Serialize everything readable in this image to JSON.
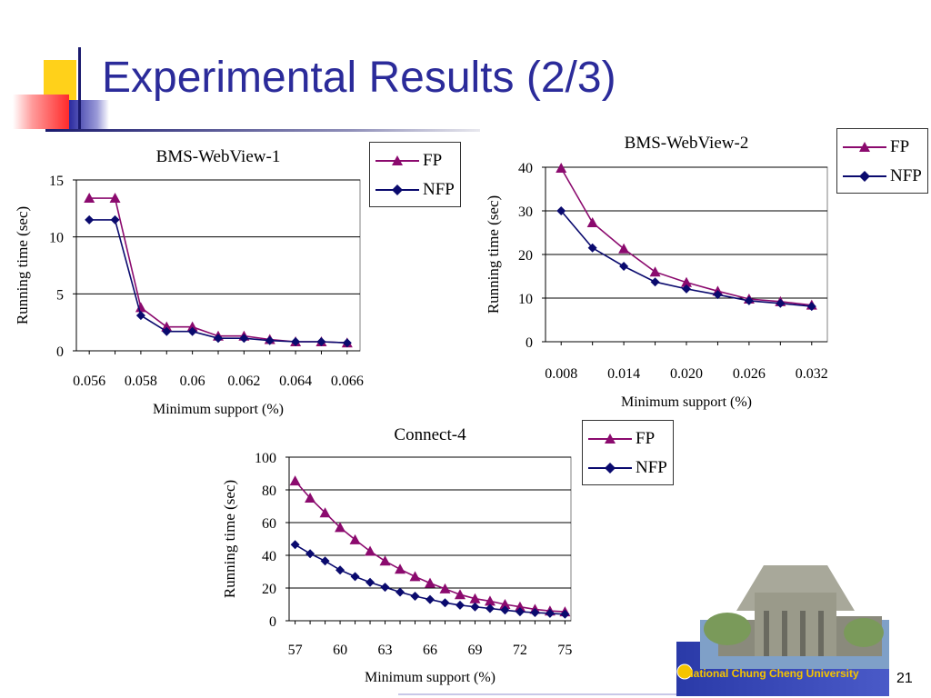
{
  "title": "Experimental Results (2/3)",
  "page_number": "21",
  "footer": {
    "university": "National Chung Cheng University"
  },
  "colors": {
    "title": "#2b2b9a",
    "fp": "#8b0a6e",
    "nfp": "#0a0a6e"
  },
  "chart_data": [
    {
      "type": "line",
      "title": "BMS-WebView-1",
      "xlabel": "Minimum support (%)",
      "ylabel": "Running time (sec)",
      "x": [
        0.056,
        0.057,
        0.058,
        0.059,
        0.06,
        0.061,
        0.062,
        0.063,
        0.064,
        0.065,
        0.066
      ],
      "xticks": [
        "0.056",
        "0.058",
        "0.06",
        "0.062",
        "0.064",
        "0.066"
      ],
      "xlim": [
        0.0555,
        0.0665
      ],
      "ylim": [
        0,
        15
      ],
      "yticks": [
        "0",
        "5",
        "10",
        "15"
      ],
      "grid": true,
      "legend_position": "top-right",
      "series": [
        {
          "name": "FP",
          "marker": "triangle",
          "values": [
            13.4,
            13.4,
            3.8,
            2.1,
            2.1,
            1.3,
            1.3,
            1.0,
            0.8,
            0.8,
            0.7
          ]
        },
        {
          "name": "NFP",
          "marker": "diamond",
          "values": [
            11.5,
            11.5,
            3.1,
            1.7,
            1.7,
            1.1,
            1.1,
            0.9,
            0.8,
            0.8,
            0.7
          ]
        }
      ]
    },
    {
      "type": "line",
      "title": "BMS-WebView-2",
      "xlabel": "Minimum support (%)",
      "ylabel": "Running time (sec)",
      "x": [
        0.008,
        0.011,
        0.014,
        0.017,
        0.02,
        0.023,
        0.026,
        0.029,
        0.032
      ],
      "xticks": [
        "0.008",
        "0.014",
        "0.020",
        "0.026",
        "0.032"
      ],
      "xlim": [
        0.0065,
        0.0335
      ],
      "ylim": [
        0,
        40
      ],
      "yticks": [
        "0",
        "10",
        "20",
        "30",
        "40"
      ],
      "grid": true,
      "legend_position": "top-right",
      "series": [
        {
          "name": "FP",
          "marker": "triangle",
          "values": [
            39.8,
            27.3,
            21.3,
            16.0,
            13.6,
            11.6,
            9.8,
            9.2,
            8.4
          ]
        },
        {
          "name": "NFP",
          "marker": "diamond",
          "values": [
            30.0,
            21.5,
            17.3,
            13.7,
            12.1,
            10.8,
            9.4,
            8.8,
            8.1
          ]
        }
      ]
    },
    {
      "type": "line",
      "title": "Connect-4",
      "xlabel": "Minimum support (%)",
      "ylabel": "Running time (sec)",
      "x": [
        57,
        58,
        59,
        60,
        61,
        62,
        63,
        64,
        65,
        66,
        67,
        68,
        69,
        70,
        71,
        72,
        73,
        74,
        75
      ],
      "xticks": [
        "57",
        "60",
        "63",
        "66",
        "69",
        "72",
        "75"
      ],
      "xlim": [
        56.6,
        75.4
      ],
      "ylim": [
        0,
        100
      ],
      "yticks": [
        "0",
        "20",
        "40",
        "60",
        "80",
        "100"
      ],
      "grid": true,
      "legend_position": "top-right",
      "series": [
        {
          "name": "FP",
          "marker": "triangle",
          "values": [
            85.5,
            75.0,
            66.0,
            57.0,
            49.5,
            42.5,
            36.5,
            31.5,
            27.0,
            23.0,
            19.5,
            16.0,
            13.5,
            12.0,
            10.0,
            8.5,
            7.0,
            6.0,
            5.5
          ]
        },
        {
          "name": "NFP",
          "marker": "diamond",
          "values": [
            46.5,
            41.0,
            36.5,
            31.0,
            27.0,
            23.5,
            20.5,
            17.5,
            15.0,
            13.0,
            11.0,
            9.5,
            8.5,
            7.5,
            6.5,
            5.5,
            5.0,
            4.5,
            4.0
          ]
        }
      ]
    }
  ]
}
